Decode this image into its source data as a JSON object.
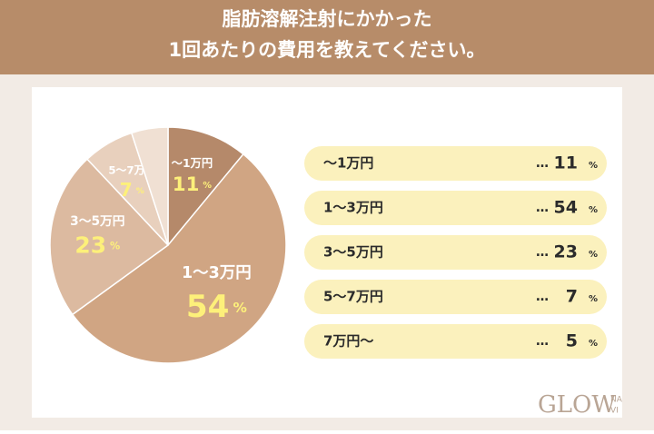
{
  "chart_data": {
    "type": "pie",
    "title": [
      "脂肪溶解注射にかかった",
      "1回あたりの費用を教えてください。"
    ],
    "categories": [
      "〜1万円",
      "1〜3万円",
      "3〜5万円",
      "5〜7万円",
      "7万円〜"
    ],
    "values": [
      11,
      54,
      23,
      7,
      5
    ],
    "colors": [
      "#b5896a",
      "#d0a583",
      "#dcbaa0",
      "#e8d0bd",
      "#f0e0d3"
    ],
    "unit": "%",
    "leader": "…",
    "logo": {
      "main": "GLOW",
      "sub": [
        "NA",
        "VI"
      ]
    }
  }
}
